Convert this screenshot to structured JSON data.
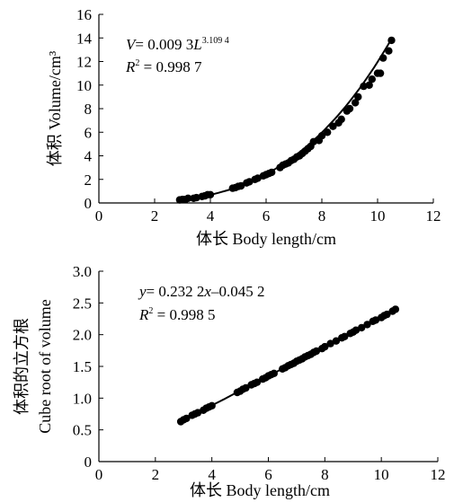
{
  "chart_data": [
    {
      "type": "scatter",
      "xlabel": "体长 Body length/cm",
      "ylabel": "体积 Volume/cm³",
      "xlim": [
        0,
        12
      ],
      "ylim": [
        0,
        16
      ],
      "xticks": [
        "0",
        "2",
        "4",
        "6",
        "8",
        "10",
        "12"
      ],
      "yticks": [
        "0",
        "2",
        "4",
        "6",
        "8",
        "10",
        "12",
        "14",
        "16"
      ],
      "grid": false,
      "equation": {
        "prefix": "V",
        "mid": "= 0.009 3",
        "var": "L",
        "exp": "3.109 4"
      },
      "r2": {
        "label": "R",
        "sup": "2",
        "value": " = 0.998 7"
      },
      "fit": {
        "kind": "power",
        "a": 0.0093,
        "b": 3.1094
      },
      "series": [
        {
          "x": [
            2.9,
            3.0,
            3.1,
            3.2,
            3.4,
            3.5,
            3.7,
            3.8,
            3.9,
            4.0,
            4.8,
            4.9,
            5.0,
            5.1,
            5.3,
            5.4,
            5.6,
            5.7,
            5.9,
            6.0,
            6.1,
            6.2,
            6.5,
            6.6,
            6.7,
            6.8,
            6.9,
            7.0,
            7.1,
            7.2,
            7.3,
            7.4,
            7.5,
            7.6,
            7.7,
            7.9,
            8.0,
            8.2,
            8.4,
            8.6,
            8.7,
            8.9,
            9.0,
            9.2,
            9.3,
            9.5,
            9.7,
            9.8,
            10.0,
            10.1,
            10.2,
            10.4,
            10.5
          ],
          "y": [
            0.26,
            0.3,
            0.3,
            0.4,
            0.4,
            0.45,
            0.55,
            0.6,
            0.7,
            0.7,
            1.25,
            1.3,
            1.4,
            1.45,
            1.7,
            1.8,
            2.0,
            2.1,
            2.3,
            2.4,
            2.5,
            2.6,
            3.0,
            3.2,
            3.3,
            3.4,
            3.6,
            3.7,
            3.9,
            4.0,
            4.2,
            4.4,
            4.6,
            4.8,
            5.2,
            5.3,
            5.7,
            6.0,
            6.5,
            6.8,
            7.1,
            7.8,
            8.0,
            8.5,
            9.0,
            9.9,
            10.0,
            10.5,
            11.0,
            11.0,
            12.3,
            12.9,
            13.8
          ]
        }
      ]
    },
    {
      "type": "scatter",
      "xlabel": "体长 Body length/cm",
      "ylabel": "体积的立方根",
      "ylabel2": "Cube root of volume",
      "xlim": [
        0,
        12
      ],
      "ylim": [
        0,
        3.0
      ],
      "xticks": [
        "0",
        "2",
        "4",
        "6",
        "8",
        "10",
        "12"
      ],
      "yticks": [
        "0",
        "0.5",
        "1.0",
        "1.5",
        "2.0",
        "2.5",
        "3.0"
      ],
      "grid": false,
      "equation": {
        "prefix": "y",
        "mid": "= 0.232 2",
        "var": "x",
        "tail": "–0.045 2"
      },
      "r2": {
        "label": "R",
        "sup": "2",
        "value": " = 0.998 5"
      },
      "fit": {
        "kind": "linear",
        "slope": 0.2322,
        "intercept": -0.0452
      },
      "series": [
        {
          "x": [
            2.9,
            3.0,
            3.1,
            3.3,
            3.4,
            3.5,
            3.7,
            3.8,
            3.9,
            4.0,
            4.9,
            5.0,
            5.1,
            5.2,
            5.4,
            5.5,
            5.6,
            5.8,
            5.9,
            6.0,
            6.1,
            6.2,
            6.5,
            6.6,
            6.7,
            6.8,
            6.9,
            7.0,
            7.1,
            7.2,
            7.3,
            7.4,
            7.5,
            7.6,
            7.7,
            7.9,
            8.0,
            8.2,
            8.4,
            8.6,
            8.7,
            8.9,
            9.0,
            9.1,
            9.3,
            9.5,
            9.7,
            9.8,
            10.0,
            10.1,
            10.2,
            10.4,
            10.5
          ],
          "y": [
            0.63,
            0.66,
            0.68,
            0.73,
            0.75,
            0.77,
            0.81,
            0.84,
            0.86,
            0.88,
            1.09,
            1.11,
            1.14,
            1.16,
            1.21,
            1.23,
            1.25,
            1.3,
            1.32,
            1.35,
            1.37,
            1.39,
            1.46,
            1.48,
            1.51,
            1.53,
            1.55,
            1.58,
            1.6,
            1.62,
            1.65,
            1.67,
            1.69,
            1.72,
            1.74,
            1.78,
            1.81,
            1.86,
            1.9,
            1.95,
            1.97,
            2.02,
            2.04,
            2.07,
            2.11,
            2.16,
            2.21,
            2.23,
            2.27,
            2.3,
            2.32,
            2.37,
            2.4
          ]
        }
      ]
    }
  ]
}
